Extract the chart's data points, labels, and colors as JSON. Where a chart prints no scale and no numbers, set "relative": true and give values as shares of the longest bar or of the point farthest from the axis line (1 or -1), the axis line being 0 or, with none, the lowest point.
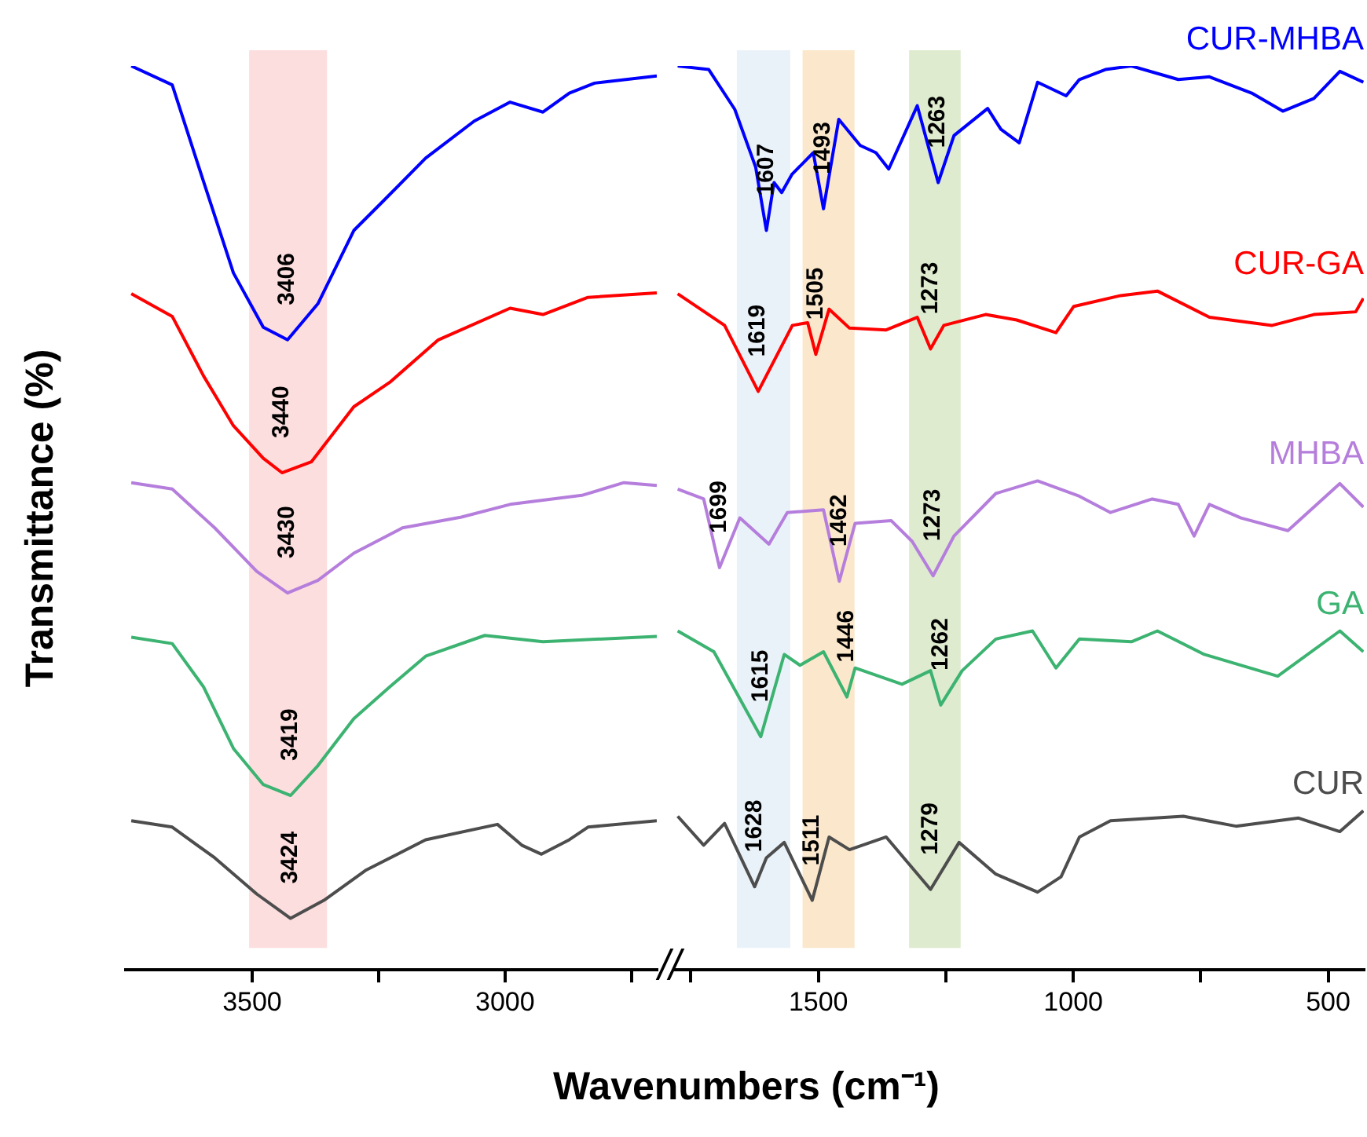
{
  "chart_data": [
    {
      "type": "line",
      "ylabel": "Transmittance (%)",
      "xlabel": "Wavenumbers (cm⁻¹)",
      "relative": true,
      "marker": "none",
      "xlim": [
        3750,
        2700
      ],
      "xticks": [
        3500,
        {
          "value": 3250,
          "label": null
        },
        3000,
        {
          "value": 2750,
          "label": null
        }
      ],
      "bands": [
        {
          "axis": "x",
          "from": 3506,
          "to": 3352,
          "color": "#fcdede"
        }
      ],
      "annotations": [
        {
          "text": "3406",
          "x": 3430,
          "y": 0.697
        },
        {
          "text": "3440",
          "x": 3441,
          "y": 0.55
        },
        {
          "text": "3430",
          "x": 3430,
          "y": 0.417
        },
        {
          "text": "3419",
          "x": 3424,
          "y": 0.193
        },
        {
          "text": "3424",
          "x": 3424,
          "y": 0.057
        }
      ],
      "series": [
        {
          "color": "#0000ff",
          "x": [
            3739,
            3658,
            3596,
            3537,
            3478,
            3430,
            3370,
            3299,
            3240,
            3157,
            3061,
            2990,
            2925,
            2873,
            2823,
            2700
          ],
          "values": [
            1.0,
            0.979,
            0.872,
            0.771,
            0.711,
            0.697,
            0.737,
            0.818,
            0.851,
            0.898,
            0.939,
            0.96,
            0.949,
            0.97,
            0.981,
            0.989
          ]
        },
        {
          "color": "#ff0000",
          "x": [
            3739,
            3658,
            3596,
            3537,
            3478,
            3441,
            3383,
            3299,
            3228,
            3132,
            2990,
            2925,
            2836,
            2700
          ],
          "values": [
            0.748,
            0.723,
            0.657,
            0.602,
            0.566,
            0.55,
            0.562,
            0.623,
            0.65,
            0.697,
            0.732,
            0.725,
            0.744,
            0.749
          ]
        },
        {
          "color": "#b57edc",
          "x": [
            3739,
            3658,
            3574,
            3491,
            3430,
            3370,
            3299,
            3203,
            3086,
            2990,
            2848,
            2765,
            2700
          ],
          "values": [
            0.539,
            0.532,
            0.489,
            0.441,
            0.417,
            0.431,
            0.461,
            0.489,
            0.501,
            0.515,
            0.525,
            0.539,
            0.536
          ]
        },
        {
          "color": "#3cb371",
          "x": [
            3739,
            3658,
            3596,
            3537,
            3478,
            3424,
            3370,
            3299,
            3228,
            3157,
            3040,
            2925,
            2700
          ],
          "values": [
            0.368,
            0.361,
            0.313,
            0.245,
            0.205,
            0.193,
            0.226,
            0.278,
            0.313,
            0.347,
            0.37,
            0.363,
            0.369
          ]
        },
        {
          "color": "#4d4d4d",
          "x": [
            3739,
            3658,
            3574,
            3491,
            3424,
            3358,
            3276,
            3157,
            3015,
            2967,
            2928,
            2873,
            2836,
            2700
          ],
          "values": [
            0.165,
            0.158,
            0.124,
            0.084,
            0.057,
            0.077,
            0.11,
            0.144,
            0.161,
            0.138,
            0.128,
            0.144,
            0.158,
            0.165
          ]
        }
      ]
    },
    {
      "type": "line",
      "relative": true,
      "marker": "none",
      "xlim": [
        1780,
        430
      ],
      "xticks": [
        {
          "value": 1750,
          "label": null
        },
        1500,
        {
          "value": 1250,
          "label": null
        },
        1000,
        {
          "value": 750,
          "label": null
        },
        500
      ],
      "bands": [
        {
          "axis": "x",
          "from": 1660,
          "to": 1555,
          "color": "#eaf2f9"
        },
        {
          "axis": "x",
          "from": 1531,
          "to": 1429,
          "color": "#fbe8cc"
        },
        {
          "axis": "x",
          "from": 1322,
          "to": 1221,
          "color": "#deebcf"
        }
      ],
      "annotations": [
        {
          "text": "1607",
          "x": 1602,
          "y": 0.818
        },
        {
          "text": "1493",
          "x": 1490,
          "y": 0.842
        },
        {
          "text": "1263",
          "x": 1265,
          "y": 0.871
        },
        {
          "text": "1619",
          "x": 1618,
          "y": 0.64
        },
        {
          "text": "1505",
          "x": 1505,
          "y": 0.681
        },
        {
          "text": "1273",
          "x": 1280,
          "y": 0.687
        },
        {
          "text": "1699",
          "x": 1694,
          "y": 0.445
        },
        {
          "text": "1462",
          "x": 1459,
          "y": 0.43
        },
        {
          "text": "1273",
          "x": 1275,
          "y": 0.436
        },
        {
          "text": "1615",
          "x": 1613,
          "y": 0.258
        },
        {
          "text": "1446",
          "x": 1444,
          "y": 0.302
        },
        {
          "text": "1262",
          "x": 1260,
          "y": 0.293
        },
        {
          "text": "1628",
          "x": 1625,
          "y": 0.092
        },
        {
          "text": "1511",
          "x": 1512,
          "y": 0.077
        },
        {
          "text": "1279",
          "x": 1280,
          "y": 0.089
        }
      ],
      "series": [
        {
          "name": "CUR-MHBA",
          "color": "#0000ff",
          "x": [
            1776,
            1715,
            1664,
            1623,
            1602,
            1587,
            1572,
            1552,
            1510,
            1490,
            1460,
            1418,
            1387,
            1362,
            1306,
            1265,
            1234,
            1168,
            1142,
            1106,
            1070,
            1014,
            988,
            937,
            886,
            794,
            733,
            650,
            589,
            528,
            477,
            431
          ],
          "values": [
            1.0,
            0.996,
            0.952,
            0.888,
            0.818,
            0.871,
            0.86,
            0.88,
            0.904,
            0.842,
            0.941,
            0.912,
            0.904,
            0.886,
            0.956,
            0.871,
            0.923,
            0.953,
            0.93,
            0.915,
            0.982,
            0.967,
            0.985,
            0.996,
            1.0,
            0.985,
            0.988,
            0.97,
            0.95,
            0.964,
            0.994,
            0.982
          ]
        },
        {
          "name": "CUR-GA",
          "color": "#ff0000",
          "x": [
            1776,
            1684,
            1618,
            1551,
            1521,
            1505,
            1479,
            1439,
            1367,
            1306,
            1280,
            1254,
            1172,
            1111,
            1034,
            999,
            907,
            835,
            733,
            610,
            528,
            446,
            431
          ],
          "values": [
            0.748,
            0.713,
            0.64,
            0.713,
            0.716,
            0.681,
            0.731,
            0.71,
            0.708,
            0.722,
            0.687,
            0.713,
            0.725,
            0.719,
            0.705,
            0.734,
            0.746,
            0.751,
            0.722,
            0.713,
            0.725,
            0.728,
            0.743
          ]
        },
        {
          "name": "MHBA",
          "color": "#b57edc",
          "x": [
            1776,
            1725,
            1694,
            1654,
            1597,
            1561,
            1490,
            1459,
            1428,
            1357,
            1316,
            1275,
            1234,
            1152,
            1070,
            988,
            927,
            845,
            794,
            763,
            733,
            671,
            579,
            477,
            431
          ],
          "values": [
            0.532,
            0.521,
            0.445,
            0.5,
            0.471,
            0.506,
            0.509,
            0.43,
            0.494,
            0.497,
            0.474,
            0.436,
            0.48,
            0.527,
            0.541,
            0.524,
            0.506,
            0.521,
            0.515,
            0.48,
            0.515,
            0.5,
            0.486,
            0.538,
            0.512
          ]
        },
        {
          "name": "GA",
          "color": "#3cb371",
          "x": [
            1776,
            1705,
            1613,
            1567,
            1536,
            1490,
            1444,
            1428,
            1336,
            1280,
            1260,
            1218,
            1152,
            1080,
            1034,
            988,
            886,
            835,
            743,
            599,
            477,
            431
          ],
          "values": [
            0.375,
            0.352,
            0.258,
            0.349,
            0.337,
            0.352,
            0.302,
            0.334,
            0.316,
            0.331,
            0.293,
            0.331,
            0.366,
            0.375,
            0.334,
            0.366,
            0.363,
            0.375,
            0.349,
            0.325,
            0.375,
            0.352
          ]
        },
        {
          "name": "CUR",
          "color": "#4d4d4d",
          "x": [
            1776,
            1725,
            1684,
            1625,
            1602,
            1567,
            1512,
            1479,
            1439,
            1367,
            1280,
            1224,
            1152,
            1070,
            1024,
            988,
            927,
            784,
            681,
            558,
            477,
            431
          ],
          "values": [
            0.17,
            0.138,
            0.162,
            0.092,
            0.124,
            0.141,
            0.077,
            0.147,
            0.133,
            0.147,
            0.089,
            0.141,
            0.106,
            0.086,
            0.103,
            0.147,
            0.165,
            0.17,
            0.159,
            0.168,
            0.153,
            0.176
          ]
        }
      ]
    }
  ]
}
